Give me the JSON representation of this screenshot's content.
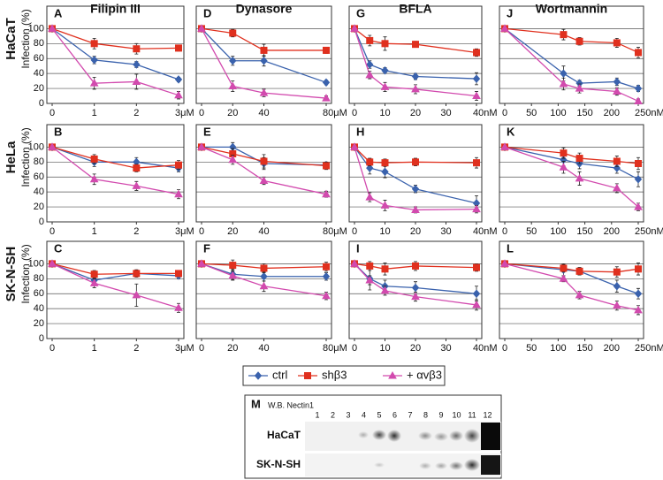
{
  "chart_data": [
    {
      "type": "line",
      "panel_label": "A",
      "title": "Filipin III",
      "row_label": "HaCaT",
      "ylabel": "Infection (%)",
      "x": [
        0,
        1,
        2,
        3
      ],
      "xlim": [
        0,
        3
      ],
      "xticks": [
        0,
        1,
        2,
        {
          "value": 3,
          "label": "3μM"
        }
      ],
      "ylim": [
        0,
        130
      ],
      "yticks": [
        0,
        20,
        40,
        60,
        80,
        100
      ],
      "series": [
        {
          "values": [
            100,
            58,
            52,
            32
          ],
          "errors": [
            0,
            5,
            4,
            3
          ]
        },
        {
          "values": [
            100,
            80,
            73,
            74
          ],
          "errors": [
            0,
            7,
            7,
            4
          ]
        },
        {
          "values": [
            100,
            27,
            29,
            11
          ],
          "errors": [
            0,
            8,
            10,
            5
          ]
        }
      ]
    },
    {
      "type": "line",
      "panel_label": "B",
      "row_label": "HeLa",
      "ylabel": "Infection (%)",
      "x": [
        0,
        1,
        2,
        3
      ],
      "xlim": [
        0,
        3
      ],
      "xticks": [
        0,
        1,
        2,
        {
          "value": 3,
          "label": "3μM"
        }
      ],
      "ylim": [
        0,
        130
      ],
      "yticks": [
        0,
        20,
        40,
        60,
        80,
        100
      ],
      "series": [
        {
          "values": [
            100,
            80,
            80,
            72
          ],
          "errors": [
            0,
            6,
            6,
            5
          ]
        },
        {
          "values": [
            100,
            84,
            72,
            76
          ],
          "errors": [
            0,
            6,
            5,
            6
          ]
        },
        {
          "values": [
            100,
            57,
            48,
            37
          ],
          "errors": [
            0,
            7,
            6,
            6
          ]
        }
      ]
    },
    {
      "type": "line",
      "panel_label": "C",
      "row_label": "SK-N-SH",
      "ylabel": "Infection (%)",
      "x": [
        0,
        1,
        2,
        3
      ],
      "xlim": [
        0,
        3
      ],
      "xticks": [
        0,
        1,
        2,
        {
          "value": 3,
          "label": "3μM"
        }
      ],
      "ylim": [
        0,
        130
      ],
      "yticks": [
        0,
        20,
        40,
        60,
        80,
        100
      ],
      "series": [
        {
          "values": [
            100,
            78,
            87,
            84
          ],
          "errors": [
            0,
            6,
            4,
            4
          ]
        },
        {
          "values": [
            100,
            86,
            87,
            87
          ],
          "errors": [
            0,
            5,
            5,
            4
          ]
        },
        {
          "values": [
            100,
            74,
            58,
            41
          ],
          "errors": [
            0,
            6,
            15,
            6
          ]
        }
      ]
    },
    {
      "type": "line",
      "panel_label": "D",
      "title": "Dynasore",
      "x": [
        0,
        20,
        40,
        80
      ],
      "xlim": [
        0,
        80
      ],
      "xticks": [
        0,
        20,
        40,
        {
          "value": 80,
          "label": "80μM"
        }
      ],
      "ylim": [
        0,
        130
      ],
      "yticks": [
        0,
        20,
        40,
        60,
        80,
        100
      ],
      "series": [
        {
          "values": [
            100,
            57,
            57,
            28
          ],
          "errors": [
            0,
            6,
            7,
            3
          ]
        },
        {
          "values": [
            100,
            94,
            71,
            71
          ],
          "errors": [
            0,
            5,
            8,
            4
          ]
        },
        {
          "values": [
            100,
            23,
            14,
            7
          ],
          "errors": [
            0,
            7,
            5,
            3
          ]
        }
      ]
    },
    {
      "type": "line",
      "panel_label": "E",
      "x": [
        0,
        20,
        40,
        80
      ],
      "xlim": [
        0,
        80
      ],
      "xticks": [
        0,
        20,
        40,
        {
          "value": 80,
          "label": "80μM"
        }
      ],
      "ylim": [
        0,
        130
      ],
      "yticks": [
        0,
        20,
        40,
        60,
        80,
        100
      ],
      "series": [
        {
          "values": [
            100,
            100,
            78,
            76
          ],
          "errors": [
            0,
            6,
            8,
            3
          ]
        },
        {
          "values": [
            100,
            91,
            81,
            75
          ],
          "errors": [
            0,
            7,
            9,
            5
          ]
        },
        {
          "values": [
            100,
            83,
            55,
            37
          ],
          "errors": [
            0,
            6,
            5,
            4
          ]
        }
      ]
    },
    {
      "type": "line",
      "panel_label": "F",
      "x": [
        0,
        20,
        40,
        80
      ],
      "xlim": [
        0,
        80
      ],
      "xticks": [
        0,
        20,
        40,
        {
          "value": 80,
          "label": "80μM"
        }
      ],
      "ylim": [
        0,
        130
      ],
      "yticks": [
        0,
        20,
        40,
        60,
        80,
        100
      ],
      "series": [
        {
          "values": [
            100,
            86,
            83,
            83
          ],
          "errors": [
            0,
            7,
            6,
            5
          ]
        },
        {
          "values": [
            100,
            98,
            94,
            96
          ],
          "errors": [
            0,
            7,
            6,
            6
          ]
        },
        {
          "values": [
            100,
            84,
            70,
            57
          ],
          "errors": [
            0,
            6,
            7,
            5
          ]
        }
      ]
    },
    {
      "type": "line",
      "panel_label": "G",
      "title": "BFLA",
      "x": [
        0,
        5,
        10,
        20,
        40
      ],
      "xlim": [
        0,
        40
      ],
      "xticks": [
        0,
        10,
        20,
        30,
        {
          "value": 40,
          "label": "40nM"
        }
      ],
      "ylim": [
        0,
        130
      ],
      "yticks": [
        0,
        20,
        40,
        60,
        80,
        100
      ],
      "series": [
        {
          "values": [
            100,
            52,
            44,
            36,
            33
          ],
          "errors": [
            0,
            5,
            4,
            4,
            8
          ]
        },
        {
          "values": [
            100,
            84,
            80,
            79,
            68
          ],
          "errors": [
            0,
            7,
            9,
            4,
            5
          ]
        },
        {
          "values": [
            100,
            38,
            22,
            19,
            10
          ],
          "errors": [
            0,
            5,
            6,
            6,
            6
          ]
        }
      ]
    },
    {
      "type": "line",
      "panel_label": "H",
      "x": [
        0,
        5,
        10,
        20,
        40
      ],
      "xlim": [
        0,
        40
      ],
      "xticks": [
        0,
        10,
        20,
        30,
        {
          "value": 40,
          "label": "40nM"
        }
      ],
      "ylim": [
        0,
        130
      ],
      "yticks": [
        0,
        20,
        40,
        60,
        80,
        100
      ],
      "series": [
        {
          "values": [
            100,
            72,
            67,
            44,
            25
          ],
          "errors": [
            0,
            8,
            8,
            5,
            10
          ]
        },
        {
          "values": [
            100,
            80,
            79,
            80,
            79
          ],
          "errors": [
            0,
            5,
            5,
            5,
            7
          ]
        },
        {
          "values": [
            100,
            33,
            22,
            16,
            17
          ],
          "errors": [
            0,
            6,
            7,
            4,
            5
          ]
        }
      ]
    },
    {
      "type": "line",
      "panel_label": "I",
      "x": [
        0,
        5,
        10,
        20,
        40
      ],
      "xlim": [
        0,
        40
      ],
      "xticks": [
        0,
        10,
        20,
        30,
        {
          "value": 40,
          "label": "40nM"
        }
      ],
      "ylim": [
        0,
        130
      ],
      "yticks": [
        0,
        20,
        40,
        60,
        80,
        100
      ],
      "series": [
        {
          "values": [
            100,
            80,
            70,
            68,
            60
          ],
          "errors": [
            0,
            15,
            8,
            8,
            10
          ]
        },
        {
          "values": [
            100,
            97,
            93,
            97,
            95
          ],
          "errors": [
            0,
            6,
            8,
            6,
            5
          ]
        },
        {
          "values": [
            100,
            78,
            64,
            56,
            45
          ],
          "errors": [
            0,
            6,
            6,
            6,
            7
          ]
        }
      ]
    },
    {
      "type": "line",
      "panel_label": "J",
      "title": "Wortmannin",
      "x": [
        0,
        110,
        140,
        210,
        250
      ],
      "xlim": [
        0,
        250
      ],
      "xticks": [
        0,
        50,
        100,
        150,
        200,
        {
          "value": 250,
          "label": "250nM"
        }
      ],
      "ylim": [
        0,
        130
      ],
      "yticks": [
        0,
        20,
        40,
        60,
        80,
        100
      ],
      "series": [
        {
          "values": [
            100,
            40,
            27,
            29,
            20
          ],
          "errors": [
            0,
            10,
            4,
            5,
            4
          ]
        },
        {
          "values": [
            100,
            92,
            83,
            81,
            68
          ],
          "errors": [
            0,
            7,
            5,
            6,
            7
          ]
        },
        {
          "values": [
            100,
            26,
            20,
            16,
            3
          ],
          "errors": [
            0,
            8,
            6,
            5,
            3
          ]
        }
      ]
    },
    {
      "type": "line",
      "panel_label": "K",
      "x": [
        0,
        110,
        140,
        210,
        250
      ],
      "xlim": [
        0,
        250
      ],
      "xticks": [
        0,
        50,
        100,
        150,
        200,
        {
          "value": 250,
          "label": "250nM"
        }
      ],
      "ylim": [
        0,
        130
      ],
      "yticks": [
        0,
        20,
        40,
        60,
        80,
        100
      ],
      "series": [
        {
          "values": [
            100,
            83,
            78,
            72,
            57
          ],
          "errors": [
            0,
            8,
            7,
            7,
            10
          ]
        },
        {
          "values": [
            100,
            92,
            85,
            81,
            78
          ],
          "errors": [
            0,
            7,
            7,
            7,
            8
          ]
        },
        {
          "values": [
            100,
            73,
            58,
            45,
            20
          ],
          "errors": [
            0,
            8,
            9,
            6,
            5
          ]
        }
      ]
    },
    {
      "type": "line",
      "panel_label": "L",
      "x": [
        0,
        110,
        140,
        210,
        250
      ],
      "xlim": [
        0,
        250
      ],
      "xticks": [
        0,
        50,
        100,
        150,
        200,
        {
          "value": 250,
          "label": "250nM"
        }
      ],
      "ylim": [
        0,
        130
      ],
      "yticks": [
        0,
        20,
        40,
        60,
        80,
        100
      ],
      "series": [
        {
          "values": [
            100,
            92,
            90,
            70,
            60
          ],
          "errors": [
            0,
            8,
            5,
            8,
            7
          ]
        },
        {
          "values": [
            100,
            94,
            90,
            89,
            93
          ],
          "errors": [
            0,
            5,
            5,
            7,
            8
          ]
        },
        {
          "values": [
            100,
            80,
            58,
            44,
            38
          ],
          "errors": [
            0,
            4,
            5,
            6,
            6
          ]
        }
      ]
    }
  ],
  "legend": {
    "series": [
      {
        "name": "ctrl",
        "color": "#3a62ad",
        "marker": "diamond"
      },
      {
        "name": "shβ3",
        "color": "#e0301e",
        "marker": "square"
      },
      {
        "name": "+ αvβ3",
        "color": "#d24aae",
        "marker": "triangle"
      }
    ]
  },
  "blot": {
    "label": "M",
    "title": "W.B. Nectin1",
    "lanes": [
      "1",
      "2",
      "3",
      "4",
      "5",
      "6",
      "7",
      "8",
      "9",
      "10",
      "11",
      "12"
    ],
    "rows": [
      "HaCaT",
      "SK-N-SH"
    ]
  }
}
